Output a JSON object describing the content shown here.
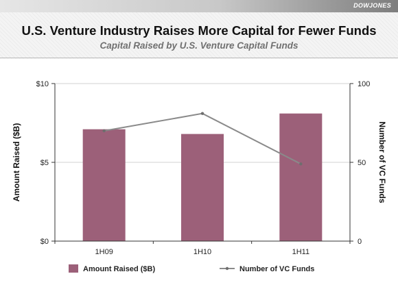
{
  "header": {
    "logo": "DOWJONES",
    "title": "U.S. Venture Industry Raises More Capital for Fewer Funds",
    "subtitle": "Capital Raised by U.S. Venture Capital Funds"
  },
  "chart_data": {
    "type": "bar",
    "categories": [
      "1H09",
      "1H10",
      "1H11"
    ],
    "series": [
      {
        "name": "Amount Raised ($B)",
        "type": "bar",
        "axis": "left",
        "color": "#9c6079",
        "values": [
          7.1,
          6.8,
          8.1
        ]
      },
      {
        "name": "Number of VC Funds",
        "type": "line",
        "axis": "right",
        "color": "#8a8a8a",
        "values": [
          70,
          81,
          49
        ]
      }
    ],
    "ylabel": "Amount Raised ($B)",
    "ylabel_right": "Number of VC Funds",
    "ylim": [
      0,
      10
    ],
    "ylim_right": [
      0,
      100
    ],
    "yticks": [
      {
        "value": 0,
        "label": "$0"
      },
      {
        "value": 5,
        "label": "$5"
      },
      {
        "value": 10,
        "label": "$10"
      }
    ],
    "yticks_right": [
      {
        "value": 0,
        "label": "0"
      },
      {
        "value": 50,
        "label": "50"
      },
      {
        "value": 100,
        "label": "100"
      }
    ],
    "grid": true,
    "legend": "bottom"
  }
}
